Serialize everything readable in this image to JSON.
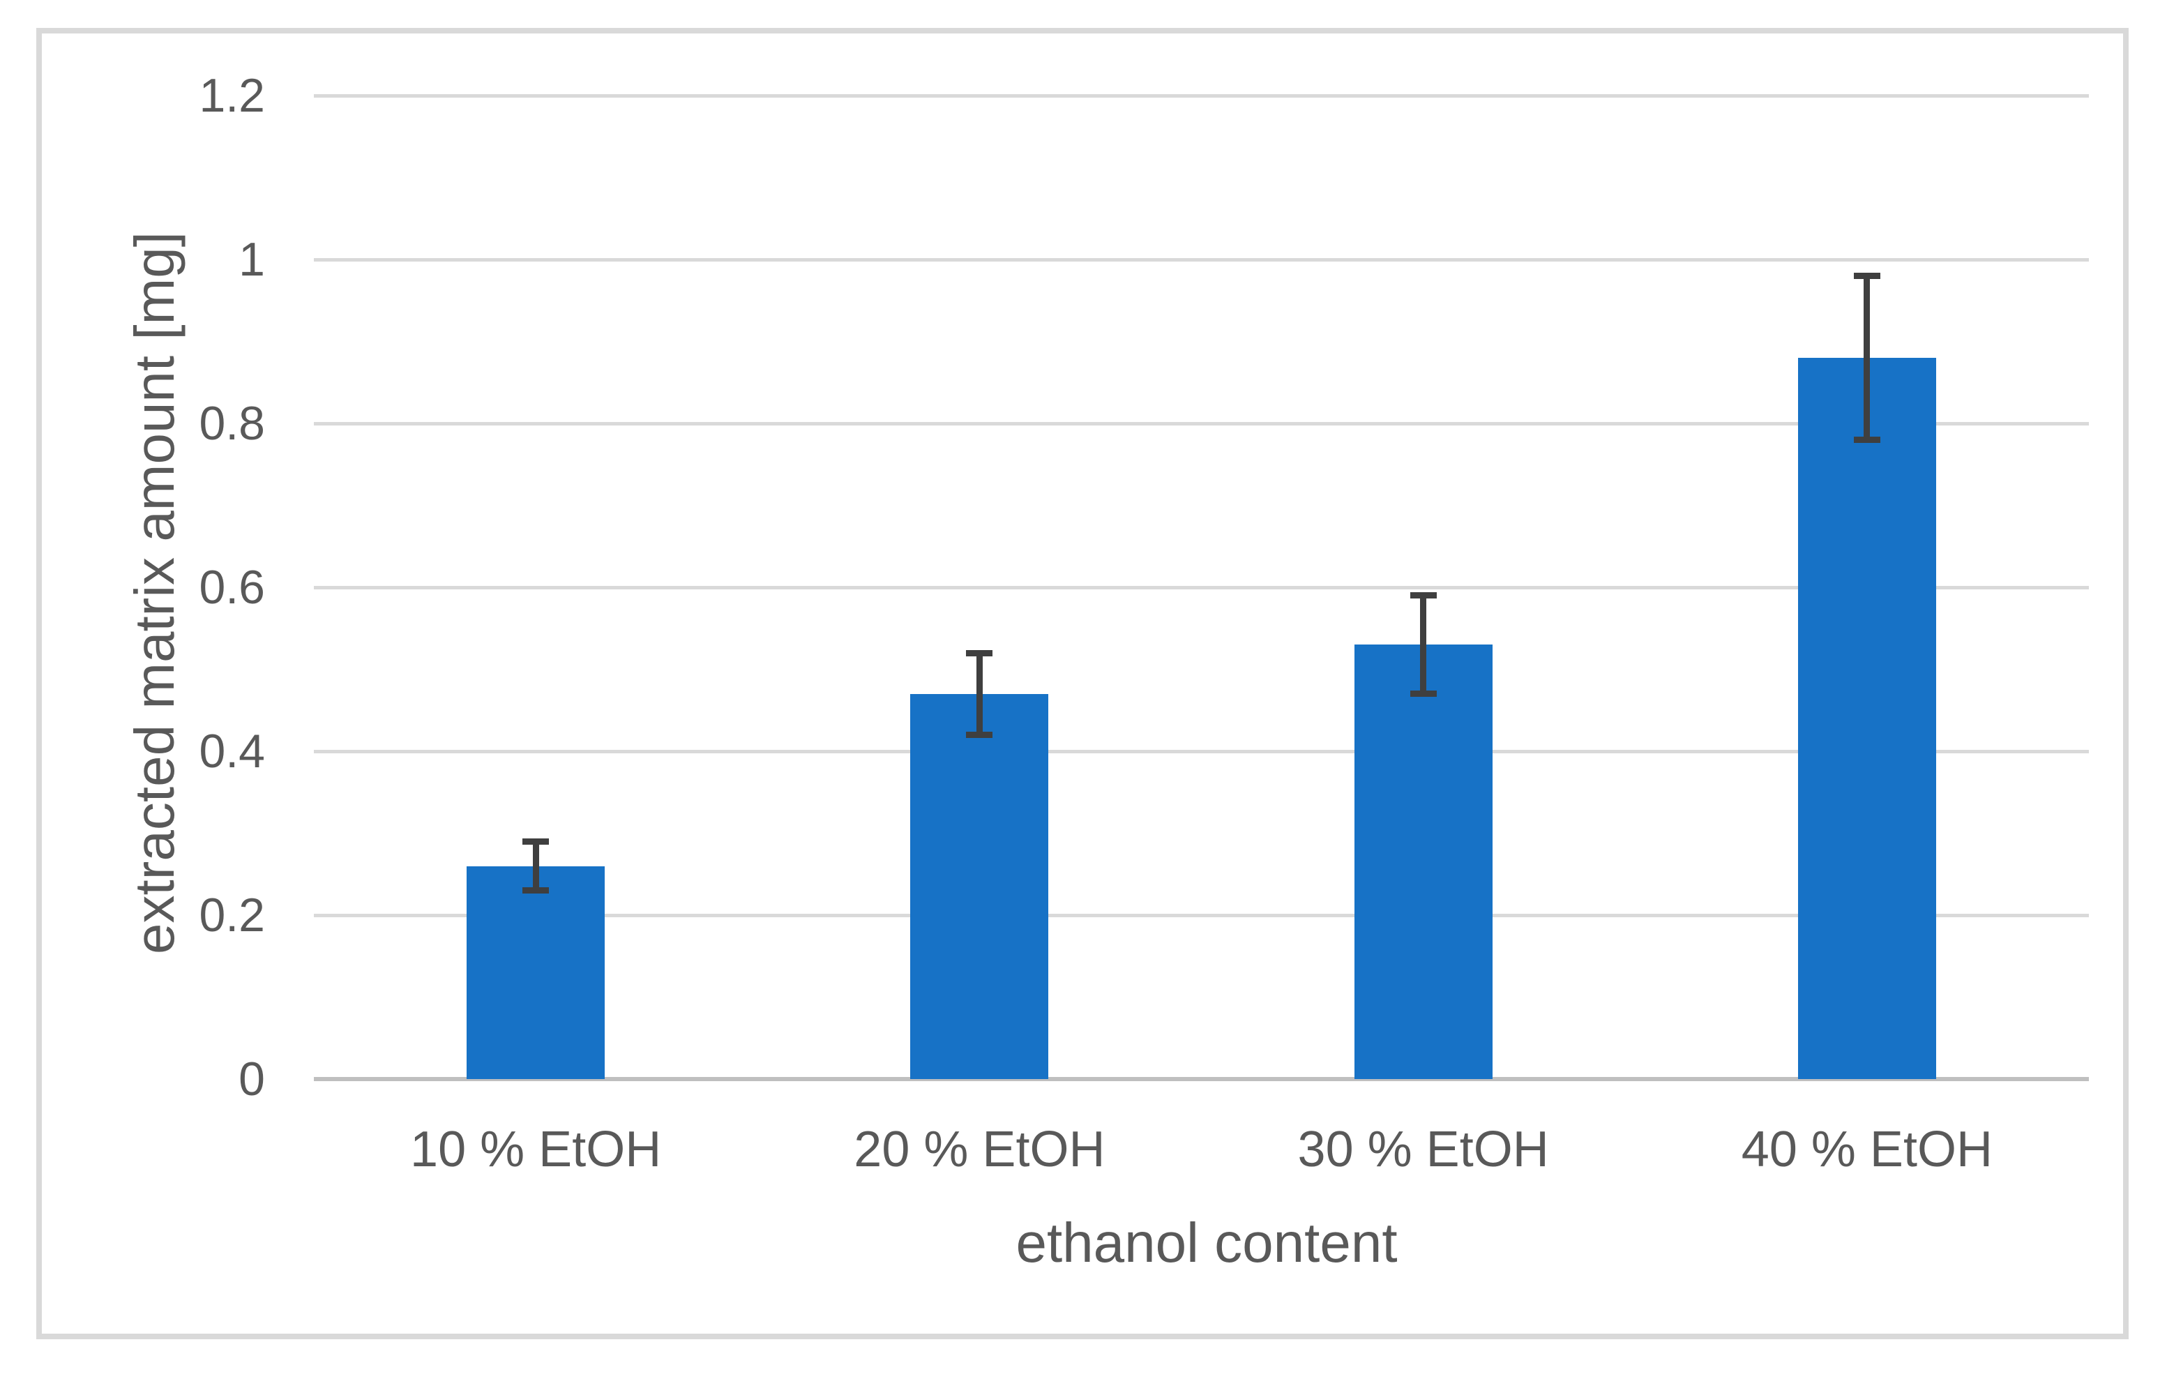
{
  "chart_data": {
    "type": "bar",
    "title": "",
    "categories": [
      "10 % EtOH",
      "20 % EtOH",
      "30 % EtOH",
      "40 % EtOH"
    ],
    "values": [
      0.26,
      0.47,
      0.53,
      0.88
    ],
    "error_bars": [
      0.03,
      0.05,
      0.06,
      0.1
    ],
    "xlabel": "ethanol content",
    "ylabel": "extracted matrix amount [mg]",
    "ylim": [
      0,
      1.2
    ],
    "ytick_step": 0.2,
    "ytick_labels": [
      "0",
      "0.2",
      "0.4",
      "0.6",
      "0.8",
      "1",
      "1.2"
    ],
    "grid": true,
    "legend": false,
    "colors": {
      "bar_fill": "#1772C6",
      "error_bar": "#3F3F3F",
      "gridline": "#D9D9D9",
      "axis_line": "#BFBFBF",
      "frame_border": "#D9D9D9",
      "text": "#595959",
      "background": "#FFFFFF"
    }
  }
}
